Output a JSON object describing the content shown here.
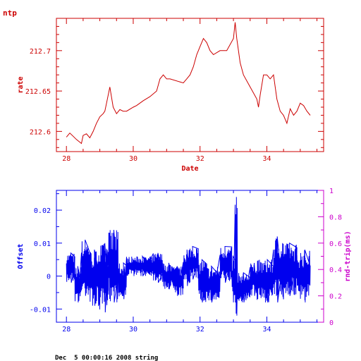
{
  "app_label": "ntp",
  "footer_text": "Dec  5 00:00:16 2008 string",
  "colors": {
    "top_chart": "#cc0000",
    "bottom_chart": "#0000ee",
    "secondary_axis": "#cc00cc",
    "footer": "#000000",
    "background": "#ffffff"
  },
  "chart_data": [
    {
      "type": "line",
      "title": "",
      "xlabel": "Date",
      "ylabel": "rate",
      "xlim": [
        27.7,
        35.7
      ],
      "ylim": [
        212.575,
        212.74
      ],
      "xticks": [
        28,
        30,
        32,
        34
      ],
      "xtick_labels": [
        "28",
        "30",
        "32",
        "34"
      ],
      "yticks": [
        212.6,
        212.65,
        212.7
      ],
      "ytick_labels": [
        "212.6",
        "212.65",
        "212.7"
      ],
      "grid": false,
      "series": [
        {
          "x": [
            28.0,
            28.1,
            28.2,
            28.3,
            28.45,
            28.5,
            28.6,
            28.7,
            28.8,
            28.85,
            28.9,
            29.0,
            29.1,
            29.15,
            29.2,
            29.3,
            29.4,
            29.5,
            29.6,
            29.7,
            29.8,
            30.0,
            30.1,
            30.3,
            30.5,
            30.7,
            30.8,
            30.9,
            31.0,
            31.1,
            31.5,
            31.6,
            31.7,
            31.8,
            31.9,
            32.0,
            32.1,
            32.2,
            32.3,
            32.4,
            32.6,
            32.8,
            33.0,
            33.05,
            33.1,
            33.2,
            33.3,
            33.5,
            33.7,
            33.75,
            33.8,
            33.9,
            34.0,
            34.1,
            34.2,
            34.3,
            34.4,
            34.5,
            34.6,
            34.7,
            34.8,
            34.9,
            35.0,
            35.1,
            35.2,
            35.3
          ],
          "y": [
            212.593,
            212.598,
            212.594,
            212.59,
            212.585,
            212.595,
            212.597,
            212.592,
            212.6,
            212.605,
            212.61,
            212.618,
            212.622,
            212.625,
            212.635,
            212.655,
            212.63,
            212.622,
            212.627,
            212.625,
            212.625,
            212.63,
            212.632,
            212.638,
            212.643,
            212.65,
            212.665,
            212.67,
            212.665,
            212.665,
            212.66,
            212.665,
            212.67,
            212.68,
            212.695,
            212.705,
            212.715,
            212.71,
            212.7,
            212.695,
            212.7,
            212.7,
            212.715,
            212.735,
            212.715,
            212.685,
            212.67,
            212.655,
            212.64,
            212.63,
            212.645,
            212.67,
            212.67,
            212.665,
            212.67,
            212.64,
            212.625,
            212.62,
            212.61,
            212.628,
            212.62,
            212.625,
            212.635,
            212.632,
            212.625,
            212.62
          ]
        }
      ]
    },
    {
      "type": "line",
      "title": "",
      "xlabel": "",
      "ylabel": "Offset",
      "y2label": "rnd-trip(ms)",
      "xlim": [
        27.7,
        35.7
      ],
      "ylim": [
        -0.014,
        0.026
      ],
      "y2lim": [
        0,
        1
      ],
      "xticks": [
        28,
        30,
        32,
        34
      ],
      "xtick_labels": [
        "28",
        "30",
        "32",
        "34"
      ],
      "yticks": [
        -0.01,
        0,
        0.01,
        0.02
      ],
      "ytick_labels": [
        "-0.01",
        "0",
        "0.01",
        "0.02"
      ],
      "y2ticks": [
        0,
        0.2,
        0.4,
        0.6,
        0.8,
        1
      ],
      "y2tick_labels": [
        "0",
        "0.2",
        "0.4",
        "0.6",
        "0.8",
        "1"
      ],
      "grid": false,
      "series": [
        {
          "x_start": 28.0,
          "x_end": 35.3,
          "levels": [
            {
              "x": [
                28.0,
                28.25
              ],
              "low": -0.002,
              "high": 0.007
            },
            {
              "x": [
                28.25,
                28.45
              ],
              "low": -0.008,
              "high": 0.003
            },
            {
              "x": [
                28.45,
                28.7
              ],
              "low": -0.006,
              "high": 0.011
            },
            {
              "x": [
                28.7,
                28.95
              ],
              "low": -0.009,
              "high": 0.008
            },
            {
              "x": [
                28.95,
                29.25
              ],
              "low": -0.011,
              "high": 0.01
            },
            {
              "x": [
                29.25,
                29.55
              ],
              "low": -0.008,
              "high": 0.014
            },
            {
              "x": [
                29.55,
                29.8
              ],
              "low": -0.007,
              "high": 0.004
            },
            {
              "x": [
                29.8,
                30.6
              ],
              "low": 0.0,
              "high": 0.006
            },
            {
              "x": [
                30.6,
                30.9
              ],
              "low": -0.002,
              "high": 0.007
            },
            {
              "x": [
                30.9,
                31.2
              ],
              "low": -0.004,
              "high": 0.004
            },
            {
              "x": [
                31.2,
                31.5
              ],
              "low": -0.006,
              "high": 0.003
            },
            {
              "x": [
                31.5,
                31.7
              ],
              "low": -0.003,
              "high": 0.008
            },
            {
              "x": [
                31.7,
                31.95
              ],
              "low": -0.001,
              "high": 0.009
            },
            {
              "x": [
                31.95,
                32.2
              ],
              "low": -0.008,
              "high": 0.005
            },
            {
              "x": [
                32.2,
                32.6
              ],
              "low": -0.008,
              "high": 0.003
            },
            {
              "x": [
                32.6,
                32.95
              ],
              "low": -0.002,
              "high": 0.009
            },
            {
              "x": [
                32.95,
                33.05
              ],
              "low": -0.008,
              "high": 0.006
            },
            {
              "x": [
                33.05,
                33.12
              ],
              "low": -0.012,
              "high": 0.024
            },
            {
              "x": [
                33.12,
                33.5
              ],
              "low": -0.008,
              "high": 0.001
            },
            {
              "x": [
                33.5,
                33.7
              ],
              "low": -0.006,
              "high": 0.004
            },
            {
              "x": [
                33.7,
                34.2
              ],
              "low": -0.008,
              "high": 0.005
            },
            {
              "x": [
                34.2,
                34.5
              ],
              "low": -0.008,
              "high": 0.012
            },
            {
              "x": [
                34.5,
                34.9
              ],
              "low": -0.006,
              "high": 0.01
            },
            {
              "x": [
                34.9,
                35.3
              ],
              "low": -0.008,
              "high": 0.008
            }
          ]
        }
      ]
    }
  ]
}
